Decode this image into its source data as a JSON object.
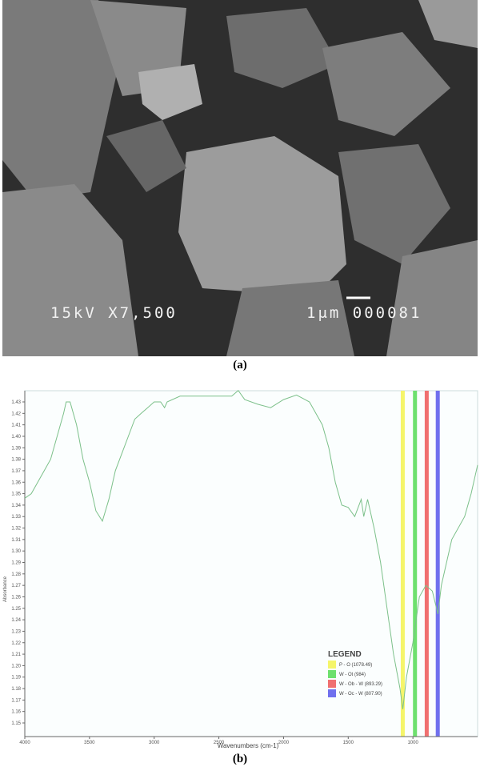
{
  "panel_a": {
    "caption": "(a)",
    "sem_voltage_mag": "15kV X7,500",
    "sem_scale_id": "1μm 000081"
  },
  "panel_b": {
    "caption": "(b)"
  },
  "chart_data": {
    "type": "line",
    "title": "",
    "xlabel": "Wavenumbers (cm-1)",
    "ylabel": "Absorbance",
    "xlim": [
      4000,
      500
    ],
    "ylim": [
      1.14,
      1.44
    ],
    "x_ticks": [
      "4000",
      "3500",
      "3000",
      "2500",
      "2000",
      "1500",
      "1000"
    ],
    "y_ticks": [
      "1.43",
      "1.42",
      "1.41",
      "1.40",
      "1.39",
      "1.38",
      "1.37",
      "1.36",
      "1.35",
      "1.34",
      "1.33",
      "1.32",
      "1.31",
      "1.30",
      "1.29",
      "1.28",
      "1.27",
      "1.26",
      "1.25",
      "1.24",
      "1.23",
      "1.22",
      "1.21",
      "1.20",
      "1.19",
      "1.18",
      "1.17",
      "1.16",
      "1.15"
    ],
    "grid": false,
    "line_color": "#7cc08a",
    "series": [
      {
        "x": [
          4000,
          3950,
          3900,
          3850,
          3800,
          3750,
          3700,
          3680,
          3650,
          3600,
          3550,
          3500,
          3450,
          3400,
          3350,
          3300,
          3250,
          3200,
          3150,
          3100,
          3050,
          3000,
          2950,
          2920,
          2900,
          2800,
          2700,
          2600,
          2500,
          2400,
          2350,
          2300,
          2200,
          2100,
          2000,
          1900,
          1800,
          1700,
          1650,
          1600,
          1550,
          1500,
          1450,
          1400,
          1380,
          1350,
          1300,
          1250,
          1200,
          1150,
          1100,
          1078,
          1050,
          1000,
          950,
          900,
          850,
          807,
          780,
          700,
          600,
          550,
          500
        ],
        "y": [
          1.346,
          1.35,
          1.36,
          1.37,
          1.38,
          1.4,
          1.42,
          1.43,
          1.43,
          1.41,
          1.38,
          1.36,
          1.335,
          1.326,
          1.345,
          1.37,
          1.385,
          1.4,
          1.415,
          1.42,
          1.425,
          1.43,
          1.43,
          1.425,
          1.43,
          1.435,
          1.435,
          1.435,
          1.435,
          1.435,
          1.44,
          1.432,
          1.428,
          1.425,
          1.432,
          1.436,
          1.43,
          1.41,
          1.39,
          1.36,
          1.34,
          1.338,
          1.33,
          1.345,
          1.33,
          1.345,
          1.32,
          1.29,
          1.25,
          1.21,
          1.18,
          1.162,
          1.19,
          1.22,
          1.26,
          1.27,
          1.265,
          1.245,
          1.27,
          1.31,
          1.33,
          1.35,
          1.375
        ]
      }
    ],
    "legend": {
      "title": "LEGEND",
      "position": "bottom-right",
      "entries": [
        {
          "label": "P - O (1078.49)",
          "value": 1078.49,
          "color": "#f5f56a"
        },
        {
          "label": "W - Ot (984)",
          "value": 984,
          "color": "#6ee06e"
        },
        {
          "label": "W - Ob - W (893.29)",
          "value": 893.29,
          "color": "#f07070"
        },
        {
          "label": "W - Oc - W (807.90)",
          "value": 807.9,
          "color": "#7070ee"
        }
      ]
    }
  }
}
